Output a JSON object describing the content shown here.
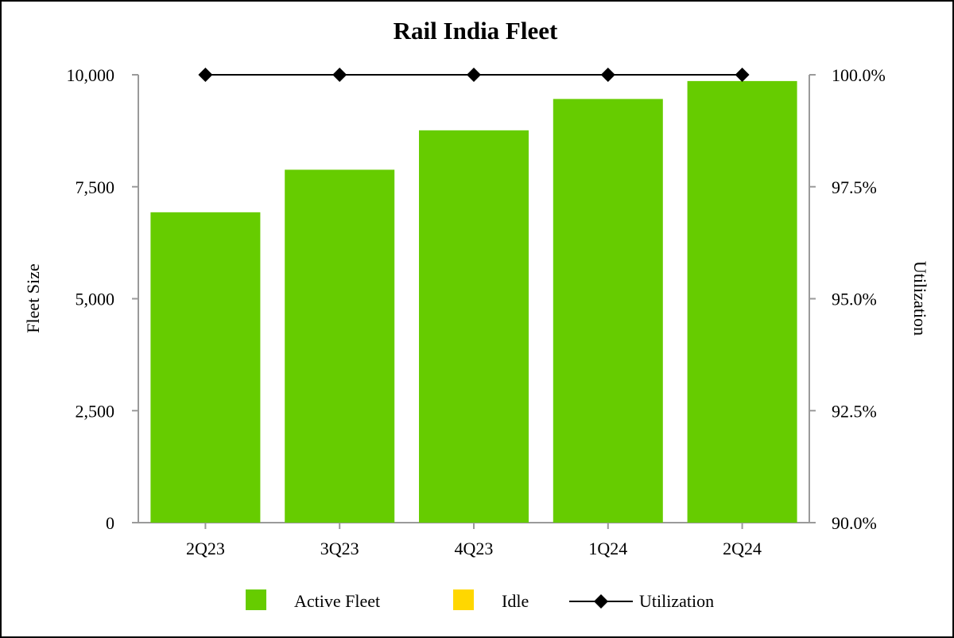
{
  "chart_data": {
    "type": "bar",
    "title": "Rail India Fleet",
    "categories": [
      "2Q23",
      "3Q23",
      "4Q23",
      "1Q24",
      "2Q24"
    ],
    "series": [
      {
        "name": "Active Fleet",
        "kind": "bar",
        "axis": "left",
        "color": "#66cc00",
        "values": [
          6930,
          7880,
          8760,
          9460,
          9860
        ]
      },
      {
        "name": "Idle",
        "kind": "bar",
        "axis": "left",
        "color": "#ffd700",
        "values": [
          0,
          0,
          0,
          0,
          0
        ]
      },
      {
        "name": "Utilization",
        "kind": "line",
        "axis": "right",
        "color": "#000000",
        "values": [
          100.0,
          100.0,
          100.0,
          100.0,
          100.0
        ]
      }
    ],
    "ylabel": "Fleet Size",
    "y2label": "Utilization",
    "ylim": [
      0,
      10000
    ],
    "y2lim": [
      90.0,
      100.0
    ],
    "yticks": [
      "0",
      "2,500",
      "5,000",
      "7,500",
      "10,000"
    ],
    "y2ticks": [
      "90.0%",
      "92.5%",
      "95.0%",
      "97.5%",
      "100.0%"
    ],
    "legend_position": "bottom",
    "grid": false
  }
}
